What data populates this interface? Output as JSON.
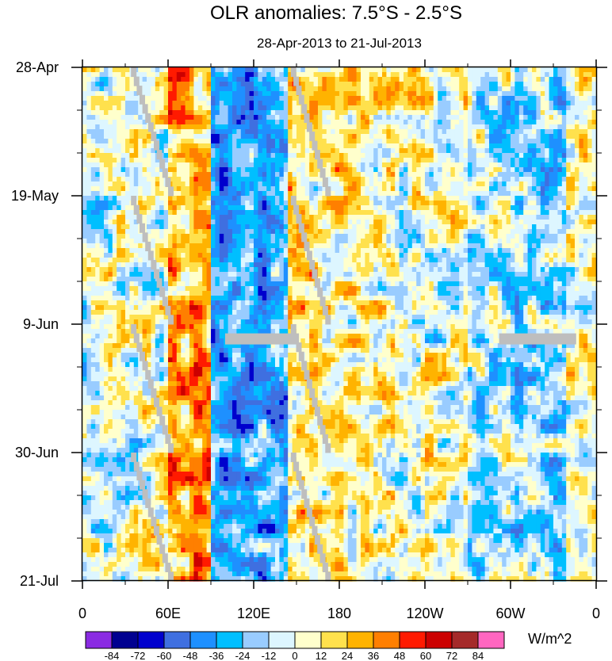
{
  "chart_data": {
    "type": "heatmap",
    "title": "OLR anomalies: 7.5°S - 2.5°S",
    "subtitle": "28-Apr-2013 to 21-Jul-2013",
    "x_tick_labels": [
      "0",
      "60E",
      "120E",
      "180",
      "120W",
      "60W",
      "0"
    ],
    "x_tick_lon": [
      0,
      60,
      120,
      180,
      240,
      300,
      360
    ],
    "xlim": [
      0,
      360
    ],
    "y_tick_labels": [
      "28-Apr",
      "19-May",
      "9-Jun",
      "30-Jun",
      "21-Jul"
    ],
    "y_tick_day": [
      0,
      21,
      42,
      63,
      84
    ],
    "ylim": [
      0,
      84
    ],
    "units": "W/m^2",
    "colorbar_levels": [
      "-84",
      "-72",
      "-60",
      "-48",
      "-36",
      "-24",
      "-12",
      "0",
      "12",
      "24",
      "36",
      "48",
      "60",
      "72",
      "84"
    ],
    "colorbar_colors": [
      "#8a2be2",
      "#000090",
      "#0000cd",
      "#3f6fe0",
      "#1e90ff",
      "#00bfff",
      "#99ccff",
      "#ddf6ff",
      "#ffffcc",
      "#ffe14d",
      "#ffb300",
      "#ff7f00",
      "#ff1a00",
      "#cc0000",
      "#a52a2a",
      "#ff66c0"
    ],
    "missing_color": "#bebebe",
    "zones": [
      {
        "lon": [
          0,
          40
        ],
        "mean": -4
      },
      {
        "lon": [
          40,
          60
        ],
        "mean": 4
      },
      {
        "lon": [
          60,
          90
        ],
        "mean": 28
      },
      {
        "lon": [
          90,
          145
        ],
        "mean": -34
      },
      {
        "lon": [
          145,
          200
        ],
        "mean": 14
      },
      {
        "lon": [
          200,
          235
        ],
        "mean": 6
      },
      {
        "lon": [
          235,
          270
        ],
        "mean": 2
      },
      {
        "lon": [
          270,
          300
        ],
        "mean": -12
      },
      {
        "lon": [
          300,
          340
        ],
        "mean": -18
      },
      {
        "lon": [
          340,
          360
        ],
        "mean": 6
      }
    ]
  }
}
